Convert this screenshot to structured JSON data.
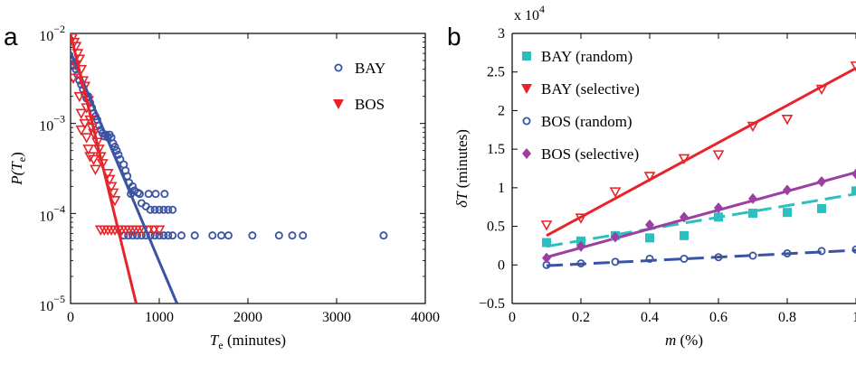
{
  "chart_data": [
    {
      "panel": "a",
      "type": "scatter",
      "xlabel": "T_e (minutes)",
      "xlabel_main": "T",
      "xlabel_sub": "e",
      "xlabel_rest": " (minutes)",
      "ylabel_main": "P(T",
      "ylabel_sub": "e",
      "ylabel_rest": ")",
      "xlim": [
        0,
        4000
      ],
      "ylim": [
        1e-05,
        0.01
      ],
      "yscale": "log",
      "x_ticks": [
        {
          "value": 0,
          "label": "0"
        },
        {
          "value": 1000,
          "label": "1000"
        },
        {
          "value": 2000,
          "label": "2000"
        },
        {
          "value": 3000,
          "label": "3000"
        },
        {
          "value": 4000,
          "label": "4000"
        }
      ],
      "y_ticks": [
        {
          "value": 0.01,
          "base": "10",
          "exp": "−2"
        },
        {
          "value": 0.001,
          "base": "10",
          "exp": "−3"
        },
        {
          "value": 0.0001,
          "base": "10",
          "exp": "−4"
        },
        {
          "value": 1e-05,
          "base": "10",
          "exp": "−5"
        }
      ],
      "legend_position": "top-right",
      "series": [
        {
          "name": "BAY",
          "marker": "circle-open",
          "color": "#3a53a4",
          "points": [
            [
              20,
              0.0049
            ],
            [
              40,
              0.0044
            ],
            [
              60,
              0.004
            ],
            [
              80,
              0.0035
            ],
            [
              100,
              0.003
            ],
            [
              120,
              0.0027
            ],
            [
              140,
              0.0024
            ],
            [
              160,
              0.0021
            ],
            [
              180,
              0.0019
            ],
            [
              200,
              0.002
            ],
            [
              220,
              0.0017
            ],
            [
              240,
              0.0015
            ],
            [
              260,
              0.0013
            ],
            [
              280,
              0.0012
            ],
            [
              300,
              0.0011
            ],
            [
              320,
              0.00095
            ],
            [
              340,
              0.00085
            ],
            [
              360,
              0.00078
            ],
            [
              380,
              0.00072
            ],
            [
              400,
              0.00075
            ],
            [
              420,
              0.0007
            ],
            [
              440,
              0.00075
            ],
            [
              460,
              0.0007
            ],
            [
              480,
              0.0006
            ],
            [
              500,
              0.00055
            ],
            [
              520,
              0.0005
            ],
            [
              540,
              0.00045
            ],
            [
              560,
              0.0004
            ],
            [
              600,
              0.00035
            ],
            [
              620,
              0.0003
            ],
            [
              640,
              0.00026
            ],
            [
              660,
              0.00022
            ],
            [
              700,
              0.0002
            ],
            [
              720,
              0.00018
            ],
            [
              760,
              0.00017
            ],
            [
              800,
              0.00013
            ],
            [
              850,
              0.00012
            ],
            [
              900,
              0.00011
            ],
            [
              950,
              0.00011
            ],
            [
              1000,
              0.00011
            ],
            [
              1050,
              0.00011
            ],
            [
              1100,
              0.00011
            ],
            [
              1150,
              0.00011
            ],
            [
              680,
              0.000165
            ],
            [
              780,
              0.000165
            ],
            [
              880,
              0.000165
            ],
            [
              960,
              0.000165
            ],
            [
              1060,
              0.000165
            ],
            [
              600,
              5.7e-05
            ],
            [
              650,
              5.7e-05
            ],
            [
              700,
              5.7e-05
            ],
            [
              750,
              5.7e-05
            ],
            [
              800,
              5.7e-05
            ],
            [
              850,
              5.7e-05
            ],
            [
              900,
              5.7e-05
            ],
            [
              950,
              5.7e-05
            ],
            [
              1000,
              5.7e-05
            ],
            [
              1050,
              5.7e-05
            ],
            [
              1100,
              5.7e-05
            ],
            [
              1150,
              5.7e-05
            ],
            [
              1250,
              5.7e-05
            ],
            [
              1400,
              5.7e-05
            ],
            [
              1600,
              5.7e-05
            ],
            [
              1700,
              5.7e-05
            ],
            [
              1780,
              5.7e-05
            ],
            [
              2050,
              5.7e-05
            ],
            [
              2350,
              5.7e-05
            ],
            [
              2500,
              5.7e-05
            ],
            [
              2620,
              5.7e-05
            ],
            [
              3530,
              5.7e-05
            ]
          ],
          "fit": [
            [
              0,
              0.0062
            ],
            [
              1200,
              1e-05
            ]
          ]
        },
        {
          "name": "BOS",
          "marker": "triangle-down",
          "color": "#e8242a",
          "points": [
            [
              20,
              0.009
            ],
            [
              40,
              0.008
            ],
            [
              60,
              0.0072
            ],
            [
              80,
              0.006
            ],
            [
              100,
              0.0052
            ],
            [
              60,
              0.0045
            ],
            [
              30,
              0.0032
            ],
            [
              120,
              0.004
            ],
            [
              140,
              0.003
            ],
            [
              160,
              0.0026
            ],
            [
              100,
              0.002
            ],
            [
              200,
              0.0018
            ],
            [
              180,
              0.0015
            ],
            [
              120,
              0.0013
            ],
            [
              220,
              0.0011
            ],
            [
              160,
              0.001
            ],
            [
              240,
              0.0009
            ],
            [
              120,
              0.00085
            ],
            [
              260,
              0.00078
            ],
            [
              180,
              0.0007
            ],
            [
              300,
              0.00062
            ],
            [
              200,
              0.00052
            ],
            [
              320,
              0.00052
            ],
            [
              340,
              0.00043
            ],
            [
              220,
              0.00043
            ],
            [
              260,
              0.0004
            ],
            [
              360,
              0.00036
            ],
            [
              280,
              0.00031
            ],
            [
              420,
              0.00028
            ],
            [
              440,
              0.00024
            ],
            [
              460,
              0.0002
            ],
            [
              480,
              0.00017
            ],
            [
              500,
              0.00014
            ],
            [
              340,
              6.6e-05
            ],
            [
              380,
              6.6e-05
            ],
            [
              420,
              6.6e-05
            ],
            [
              460,
              6.6e-05
            ],
            [
              500,
              6.6e-05
            ],
            [
              540,
              6.6e-05
            ],
            [
              580,
              6.6e-05
            ],
            [
              620,
              6.6e-05
            ],
            [
              660,
              6.6e-05
            ],
            [
              700,
              6.6e-05
            ],
            [
              740,
              6.6e-05
            ],
            [
              780,
              6.6e-05
            ],
            [
              820,
              6.6e-05
            ],
            [
              880,
              6.6e-05
            ],
            [
              940,
              6.6e-05
            ],
            [
              1000,
              6.6e-05
            ]
          ],
          "fit": [
            [
              0,
              0.0098
            ],
            [
              740,
              1e-05
            ]
          ]
        }
      ]
    },
    {
      "panel": "b",
      "type": "scatter",
      "xlabel_main": "m",
      "xlabel_rest": " (%)",
      "ylabel_main": "δT",
      "ylabel_rest": " (minutes)",
      "multiplier_label": "x 10",
      "multiplier_exp": "4",
      "xlim": [
        0,
        1.0
      ],
      "ylim": [
        -0.5,
        3
      ],
      "x_ticks": [
        {
          "value": 0,
          "label": "0"
        },
        {
          "value": 0.2,
          "label": "0.2"
        },
        {
          "value": 0.4,
          "label": "0.4"
        },
        {
          "value": 0.6,
          "label": "0.6"
        },
        {
          "value": 0.8,
          "label": "0.8"
        },
        {
          "value": 1.0,
          "label": "1"
        }
      ],
      "y_ticks": [
        {
          "value": -0.5,
          "label": "−0.5"
        },
        {
          "value": 0,
          "label": "0"
        },
        {
          "value": 0.5,
          "label": "0.5"
        },
        {
          "value": 1,
          "label": "1"
        },
        {
          "value": 1.5,
          "label": "1.5"
        },
        {
          "value": 2,
          "label": "2"
        },
        {
          "value": 2.5,
          "label": "2.5"
        },
        {
          "value": 3,
          "label": "3"
        }
      ],
      "legend_position": "top-left",
      "series": [
        {
          "name": "BAY (random)",
          "marker": "square-filled",
          "color": "#2bbfbf",
          "dash": true,
          "x": [
            0.1,
            0.2,
            0.3,
            0.4,
            0.5,
            0.6,
            0.7,
            0.8,
            0.9,
            1.0
          ],
          "y": [
            0.29,
            0.31,
            0.38,
            0.35,
            0.38,
            0.62,
            0.67,
            0.68,
            0.73,
            0.96
          ],
          "fit": [
            [
              0.1,
              0.24
            ],
            [
              1.0,
              0.92
            ]
          ]
        },
        {
          "name": "BAY (selective)",
          "marker": "triangle-down",
          "color": "#e8242a",
          "dash": false,
          "x": [
            0.1,
            0.2,
            0.3,
            0.4,
            0.5,
            0.6,
            0.7,
            0.8,
            0.9,
            1.0
          ],
          "y": [
            0.52,
            0.61,
            0.95,
            1.15,
            1.38,
            1.43,
            1.8,
            1.89,
            2.28,
            2.58
          ],
          "fit": [
            [
              0.1,
              0.38
            ],
            [
              1.0,
              2.55
            ]
          ]
        },
        {
          "name": "BOS (random)",
          "marker": "circle-open",
          "color": "#3a53a4",
          "dash": true,
          "x": [
            0.1,
            0.2,
            0.3,
            0.4,
            0.5,
            0.6,
            0.7,
            0.8,
            0.9,
            1.0
          ],
          "y": [
            0.0,
            0.02,
            0.04,
            0.08,
            0.08,
            0.1,
            0.12,
            0.15,
            0.18,
            0.2
          ],
          "fit": [
            [
              0.1,
              -0.01
            ],
            [
              1.0,
              0.19
            ]
          ]
        },
        {
          "name": "BOS (selective)",
          "marker": "diamond-filled",
          "color": "#9b3fa3",
          "dash": false,
          "x": [
            0.1,
            0.2,
            0.3,
            0.4,
            0.5,
            0.6,
            0.7,
            0.8,
            0.9,
            1.0
          ],
          "y": [
            0.09,
            0.24,
            0.36,
            0.52,
            0.62,
            0.74,
            0.86,
            0.97,
            1.08,
            1.18
          ],
          "fit": [
            [
              0.1,
              0.1
            ],
            [
              1.0,
              1.2
            ]
          ]
        }
      ]
    }
  ]
}
